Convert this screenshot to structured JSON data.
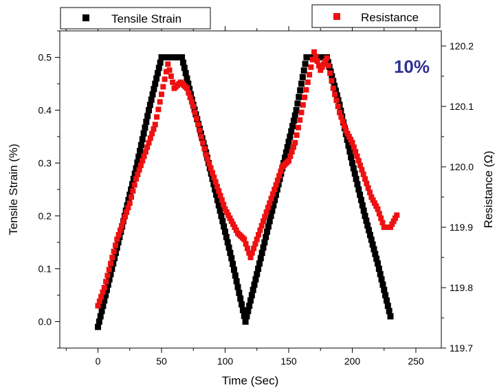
{
  "chart_data": {
    "type": "scatter",
    "xlabel": "Time (Sec)",
    "ylabel_left": "Tensile Strain (%)",
    "ylabel_right": "Resistance (Ω)",
    "xlim": [
      -30,
      270
    ],
    "ylim_left": [
      -0.05,
      0.55
    ],
    "ylim_right": [
      119.7,
      120.225
    ],
    "x_ticks": [
      0,
      50,
      100,
      150,
      200,
      250
    ],
    "y_left_ticks": [
      0.0,
      0.1,
      0.2,
      0.3,
      0.4,
      0.5
    ],
    "y_right_ticks": [
      119.7,
      119.8,
      119.9,
      120.0,
      120.1,
      120.2
    ],
    "x_tick_labels": [
      "0",
      "50",
      "100",
      "150",
      "200",
      "250"
    ],
    "y_left_tick_labels": [
      "0.0",
      "0.1",
      "0.2",
      "0.3",
      "0.4",
      "0.5"
    ],
    "y_right_tick_labels": [
      "119.7",
      "119.8",
      "119.9",
      "120.0",
      "120.1",
      "120.2"
    ],
    "annotation": "10%",
    "legend": [
      {
        "label": "Tensile Strain",
        "color": "#000000",
        "placement": "top-left"
      },
      {
        "label": "Resistance",
        "color": "#ee1111",
        "placement": "top-right"
      }
    ],
    "series": [
      {
        "name": "Tensile Strain",
        "axis": "left",
        "color": "#000000",
        "x": [
          0,
          10,
          20,
          30,
          40,
          50,
          58,
          66,
          75,
          85,
          95,
          105,
          116,
          126,
          136,
          146,
          156,
          164,
          172,
          180,
          190,
          200,
          210,
          220,
          230
        ],
        "y": [
          -0.01,
          0.09,
          0.19,
          0.29,
          0.4,
          0.5,
          0.5,
          0.5,
          0.41,
          0.32,
          0.22,
          0.12,
          0.0,
          0.1,
          0.2,
          0.3,
          0.4,
          0.5,
          0.5,
          0.5,
          0.41,
          0.3,
          0.2,
          0.11,
          0.01
        ]
      },
      {
        "name": "Resistance",
        "axis": "right",
        "color": "#ee1111",
        "x": [
          0,
          5,
          10,
          15,
          20,
          25,
          30,
          35,
          40,
          45,
          50,
          55,
          60,
          65,
          70,
          75,
          80,
          85,
          90,
          95,
          100,
          105,
          110,
          115,
          120,
          125,
          130,
          135,
          140,
          145,
          150,
          155,
          160,
          165,
          170,
          175,
          180,
          185,
          190,
          195,
          200,
          205,
          210,
          215,
          220,
          225,
          230,
          235
        ],
        "y": [
          119.77,
          119.8,
          119.84,
          119.88,
          119.91,
          119.94,
          119.98,
          120.01,
          120.04,
          120.07,
          120.12,
          120.17,
          120.13,
          120.14,
          120.13,
          120.1,
          120.06,
          120.02,
          119.99,
          119.96,
          119.93,
          119.91,
          119.89,
          119.88,
          119.85,
          119.88,
          119.91,
          119.94,
          119.97,
          120.0,
          120.01,
          120.04,
          120.09,
          120.14,
          120.19,
          120.16,
          120.18,
          120.13,
          120.09,
          120.06,
          120.04,
          120.01,
          119.98,
          119.95,
          119.93,
          119.9,
          119.9,
          119.92
        ]
      }
    ]
  }
}
